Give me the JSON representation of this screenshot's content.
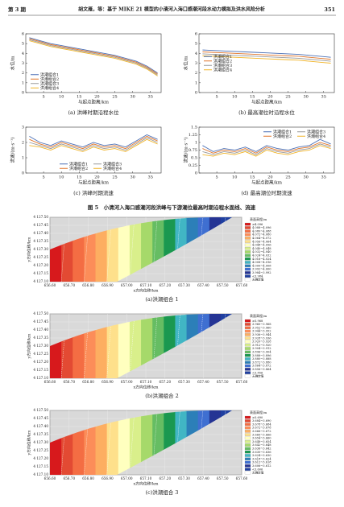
{
  "header": {
    "issue": "第 3 期",
    "title": "胡文雁，等：基于 MIKE 21 模型的小清河入海口感潮河段水动力模拟及洪水风险分析",
    "page": "351"
  },
  "chart_data": [
    {
      "type": "line",
      "caption": "(a) 洪峰时期沿程水位",
      "xlabel": "与起点距离/km",
      "ylabel": "水位/m",
      "x": [
        1,
        4,
        7,
        10,
        13,
        16,
        19,
        22,
        25,
        28,
        31,
        34,
        37
      ],
      "xlim": [
        0,
        38
      ],
      "xticks": [
        5,
        10,
        15,
        20,
        25,
        30,
        35
      ],
      "ylim": [
        0,
        6
      ],
      "yticks": [
        0,
        1,
        2,
        3,
        4,
        5,
        6
      ],
      "legend": "lower left",
      "legend_columns": 1,
      "series": [
        {
          "name": "洪潮组合1",
          "color": "#4a6fb5",
          "values": [
            5.6,
            5.3,
            5.0,
            4.8,
            4.6,
            4.4,
            4.2,
            4.0,
            3.8,
            3.5,
            3.2,
            2.7,
            2.0
          ]
        },
        {
          "name": "洪潮组合2",
          "color": "#e0762c",
          "values": [
            5.5,
            5.2,
            4.9,
            4.7,
            4.5,
            4.3,
            4.1,
            3.9,
            3.7,
            3.4,
            3.1,
            2.6,
            1.9
          ]
        },
        {
          "name": "洪潮组合3",
          "color": "#9a9a9a",
          "values": [
            5.4,
            5.1,
            4.8,
            4.6,
            4.4,
            4.2,
            4.0,
            3.8,
            3.6,
            3.3,
            3.0,
            2.5,
            1.8
          ]
        },
        {
          "name": "洪潮组合4",
          "color": "#f0b429",
          "values": [
            5.3,
            5.0,
            4.7,
            4.5,
            4.3,
            4.1,
            3.9,
            3.7,
            3.5,
            3.2,
            2.9,
            2.4,
            1.7
          ]
        }
      ]
    },
    {
      "type": "line",
      "caption": "(b) 最高潮位时沿程水位",
      "xlabel": "与起点距离/km",
      "ylabel": "水位/m",
      "x": [
        1,
        4,
        7,
        10,
        13,
        16,
        19,
        22,
        25,
        28,
        31,
        34,
        37
      ],
      "xlim": [
        0,
        38
      ],
      "xticks": [
        5,
        10,
        15,
        20,
        25,
        30,
        35
      ],
      "ylim": [
        0,
        6
      ],
      "yticks": [
        0,
        1,
        2,
        3,
        4,
        5,
        6
      ],
      "legend": "center left",
      "legend_columns": 1,
      "series": [
        {
          "name": "洪潮组合1",
          "color": "#4a6fb5",
          "values": [
            4.35,
            4.3,
            4.25,
            4.2,
            4.15,
            4.1,
            4.05,
            4.0,
            3.95,
            3.9,
            3.8,
            3.7,
            3.6
          ]
        },
        {
          "name": "洪潮组合2",
          "color": "#e0762c",
          "values": [
            4.15,
            4.1,
            4.05,
            4.0,
            3.95,
            3.9,
            3.85,
            3.8,
            3.75,
            3.7,
            3.6,
            3.5,
            3.4
          ]
        },
        {
          "name": "洪潮组合3",
          "color": "#9a9a9a",
          "values": [
            3.95,
            3.9,
            3.85,
            3.8,
            3.75,
            3.7,
            3.65,
            3.6,
            3.55,
            3.5,
            3.4,
            3.3,
            3.2
          ]
        },
        {
          "name": "洪潮组合4",
          "color": "#f0b429",
          "values": [
            3.75,
            3.7,
            3.65,
            3.6,
            3.55,
            3.5,
            3.45,
            3.4,
            3.35,
            3.3,
            3.2,
            3.1,
            3.0
          ]
        }
      ]
    },
    {
      "type": "line",
      "caption": "(c) 洪峰时期流速",
      "xlabel": "与起点距离/km",
      "ylabel": "流速/(m·s⁻¹)",
      "x": [
        1,
        4,
        7,
        10,
        13,
        16,
        19,
        22,
        25,
        28,
        31,
        34,
        37
      ],
      "xlim": [
        0,
        38
      ],
      "xticks": [
        5,
        10,
        15,
        20,
        25,
        30,
        35
      ],
      "ylim": [
        0,
        3
      ],
      "yticks": [
        0,
        1,
        2,
        3
      ],
      "legend": "lower center",
      "legend_columns": 2,
      "series": [
        {
          "name": "洪潮组合1",
          "color": "#4a6fb5",
          "values": [
            2.4,
            2.0,
            1.8,
            2.1,
            1.9,
            1.7,
            2.0,
            1.8,
            1.9,
            1.7,
            2.1,
            2.5,
            2.2
          ]
        },
        {
          "name": "洪潮组合2",
          "color": "#e0762c",
          "values": [
            2.2,
            1.9,
            1.7,
            2.0,
            1.8,
            1.6,
            1.9,
            1.7,
            1.8,
            1.6,
            2.0,
            2.4,
            2.1
          ]
        },
        {
          "name": "洪潮组合3",
          "color": "#9a9a9a",
          "values": [
            2.0,
            1.8,
            1.6,
            1.9,
            1.7,
            1.5,
            1.8,
            1.6,
            1.7,
            1.5,
            1.9,
            2.3,
            2.0
          ]
        },
        {
          "name": "洪潮组合4",
          "color": "#f0b429",
          "values": [
            1.8,
            1.7,
            1.5,
            1.8,
            1.6,
            1.4,
            1.7,
            1.5,
            1.6,
            1.4,
            1.8,
            2.2,
            1.9
          ]
        }
      ]
    },
    {
      "type": "line",
      "caption": "(d) 最高潮位时期流速",
      "xlabel": "与起点距离/km",
      "ylabel": "流速/(m·s⁻¹)",
      "x": [
        1,
        4,
        7,
        10,
        13,
        16,
        19,
        22,
        25,
        28,
        31,
        34,
        37
      ],
      "xlim": [
        0,
        38
      ],
      "xticks": [
        5,
        10,
        15,
        20,
        25,
        30,
        35
      ],
      "ylim": [
        0,
        1.5
      ],
      "yticks": [
        0,
        0.25,
        0.5,
        0.75,
        1,
        1.25,
        1.5
      ],
      "legend": "upper right",
      "legend_columns": 2,
      "series": [
        {
          "name": "洪潮组合1",
          "color": "#4a6fb5",
          "values": [
            0.9,
            0.7,
            0.8,
            0.75,
            0.85,
            0.7,
            0.9,
            0.8,
            0.75,
            0.85,
            0.9,
            1.1,
            0.95
          ]
        },
        {
          "name": "洪潮组合2",
          "color": "#e0762c",
          "values": [
            0.8,
            0.65,
            0.75,
            0.7,
            0.8,
            0.65,
            0.85,
            0.75,
            0.7,
            0.8,
            0.85,
            1.0,
            0.9
          ]
        },
        {
          "name": "洪潮组合3",
          "color": "#9a9a9a",
          "values": [
            0.7,
            0.6,
            0.7,
            0.65,
            0.75,
            0.6,
            0.8,
            0.7,
            0.65,
            0.75,
            0.8,
            0.95,
            0.85
          ]
        },
        {
          "name": "洪潮组合4",
          "color": "#f0b429",
          "values": [
            0.6,
            0.55,
            0.65,
            0.6,
            0.7,
            0.55,
            0.75,
            0.65,
            0.6,
            0.7,
            0.75,
            0.9,
            0.8
          ]
        }
      ]
    }
  ],
  "figure_caption": "图 5　小清河入海口感潮河段洪峰与下游潮位最高时期沿程水面线、流速",
  "maps": [
    {
      "caption": "(a)洪潮组合 1",
      "legend_title": "表面高程/m",
      "xlabel": "x方向位移/km",
      "ylabel": "y方向位移/km",
      "xticks": [
        "656.60",
        "656.70",
        "656.80",
        "656.90",
        "657.00",
        "657.10",
        "657.20",
        "657.30",
        "657.40",
        "657.50",
        "657.60"
      ],
      "yticks": [
        "4 127.50",
        "4 127.45",
        "4 127.40",
        "4 127.35",
        "4 127.30",
        "4 127.25",
        "4 127.20",
        "4 127.15",
        "4 127.10"
      ],
      "legend": [
        "≥4.096",
        "4.088~4.096",
        "4.080~4.088",
        "4.072~4.080",
        "4.064~4.072",
        "4.056~4.064",
        "4.048~4.056",
        "4.040~4.048",
        "4.032~4.040",
        "4.024~4.032",
        "4.016~4.024",
        "4.008~4.016",
        "4.000~4.008",
        "3.992~4.000",
        "3.984~3.992",
        "<3.984",
        "无确定值"
      ],
      "band_colors": [
        "#d7191c",
        "#e34a33",
        "#f46d43",
        "#fc8d59",
        "#fdae61",
        "#fee08b",
        "#ffffbf",
        "#d9ef8b",
        "#a6d96a",
        "#66bd63",
        "#1a9850",
        "#41b6c4",
        "#2c7fb8",
        "#3f6fd1",
        "#253494",
        "#1f3fa0",
        "#ffffff"
      ]
    },
    {
      "caption": "(b)洪潮组合 2",
      "legend_title": "表面高程/m",
      "xlabel": "x方向位移/km",
      "ylabel": "y方向位移/km",
      "xticks": [
        "656.60",
        "656.70",
        "656.80",
        "656.90",
        "657.00",
        "657.10",
        "657.20",
        "657.30",
        "657.40",
        "657.50",
        "657.60"
      ],
      "yticks": [
        "4 127.50",
        "4 127.45",
        "4 127.40",
        "4 127.35",
        "4 127.30",
        "4 127.25",
        "4 127.20",
        "4 127.15",
        "4 127.10"
      ],
      "legend": [
        "≥3.968",
        "3.960~3.968",
        "3.952~3.960",
        "3.944~3.952",
        "3.936~3.944",
        "3.928~3.936",
        "3.920~3.928",
        "3.912~3.920",
        "3.904~3.912",
        "3.896~3.904",
        "3.888~3.896",
        "3.880~3.888",
        "3.872~3.880",
        "3.864~3.872",
        "3.856~3.864",
        "<3.856",
        "无确定值"
      ],
      "band_colors": [
        "#d7191c",
        "#e34a33",
        "#f46d43",
        "#fc8d59",
        "#fdae61",
        "#fee08b",
        "#ffffbf",
        "#d9ef8b",
        "#a6d96a",
        "#66bd63",
        "#1a9850",
        "#41b6c4",
        "#2c7fb8",
        "#3f6fd1",
        "#253494",
        "#1f3fa0",
        "#ffffff"
      ]
    },
    {
      "caption": "(c)洪潮组合 3",
      "legend_title": "表面高程/m",
      "xlabel": "x方向位移/km",
      "ylabel": "y方向位移/km",
      "xticks": [
        "656.60",
        "656.70",
        "656.80",
        "656.90",
        "657.00",
        "657.10",
        "657.20",
        "657.30",
        "657.40",
        "657.50",
        "657.60"
      ],
      "yticks": [
        "4 127.50",
        "4 127.45",
        "4 127.40",
        "4 127.35",
        "4 127.30",
        "4 127.25",
        "4 127.20",
        "4 127.15",
        "4 127.10"
      ],
      "legend": [
        "≥3.690",
        "3.684~3.690",
        "3.678~3.684",
        "3.672~3.678",
        "3.666~3.672",
        "3.660~3.666",
        "3.654~3.660",
        "3.648~3.654",
        "3.642~3.648",
        "3.636~3.642",
        "3.630~3.636",
        "3.624~3.630",
        "3.618~3.624",
        "3.612~3.618",
        "3.606~3.612",
        "<3.606",
        "无确定值"
      ],
      "band_colors": [
        "#d7191c",
        "#e34a33",
        "#f46d43",
        "#fc8d59",
        "#fdae61",
        "#fee08b",
        "#ffffbf",
        "#d9ef8b",
        "#a6d96a",
        "#66bd63",
        "#1a9850",
        "#41b6c4",
        "#2c7fb8",
        "#3f6fd1",
        "#253494",
        "#1f3fa0",
        "#ffffff"
      ]
    }
  ]
}
